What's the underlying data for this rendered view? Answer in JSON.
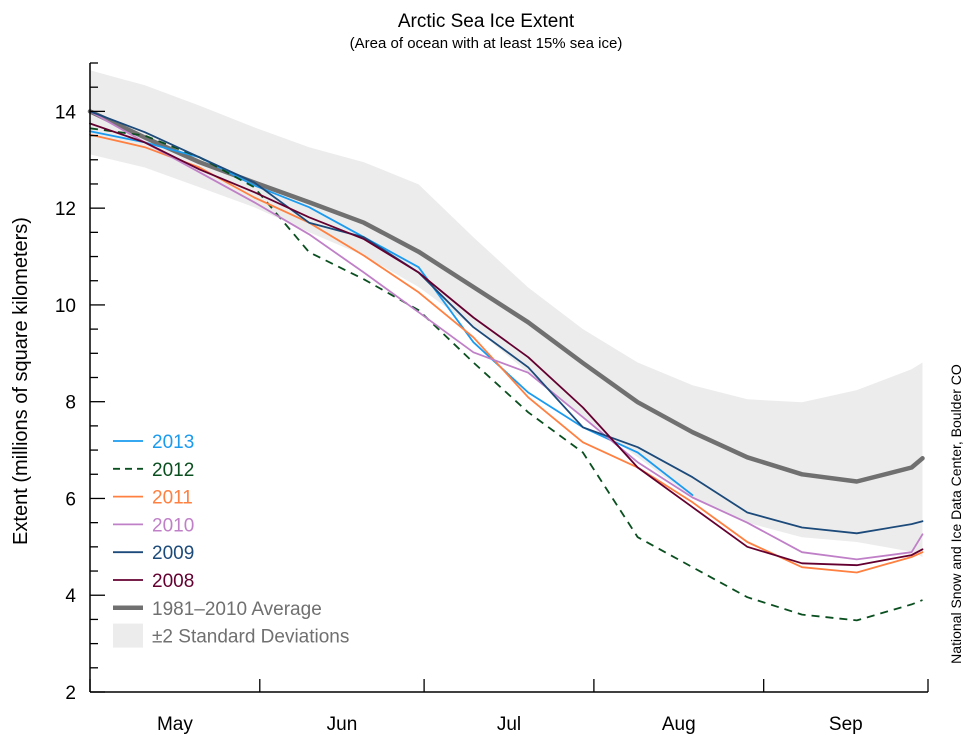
{
  "chart_data": {
    "type": "line",
    "title": "Arctic Sea Ice Extent",
    "subtitle": "(Area of ocean with at least 15% sea ice)",
    "ylabel": "Extent (millions of square kilometers)",
    "xlabel": "",
    "credit": "National Snow and Ice Data Center, Boulder CO",
    "ylim": [
      2,
      15
    ],
    "xlim": [
      "05-01",
      "10-01"
    ],
    "yticks": [
      2,
      4,
      6,
      8,
      10,
      12,
      14
    ],
    "xtick_labels": [
      "May",
      "Jun",
      "Jul",
      "Aug",
      "Sep"
    ],
    "grid": false,
    "legend_placement": "bottom-left",
    "x": [
      "05-01",
      "05-11",
      "05-21",
      "05-31",
      "06-10",
      "06-20",
      "06-30",
      "07-10",
      "07-20",
      "07-30",
      "08-09",
      "08-19",
      "08-29",
      "09-08",
      "09-18",
      "09-28",
      "09-30"
    ],
    "band": {
      "name": "±2 Standard Deviations",
      "color": "#ececec",
      "upper": [
        14.85,
        14.54,
        14.12,
        13.67,
        13.26,
        12.95,
        12.49,
        11.4,
        10.36,
        9.5,
        8.81,
        8.34,
        8.05,
        7.99,
        8.24,
        8.67,
        8.81
      ],
      "lower": [
        13.11,
        12.84,
        12.43,
        12.02,
        11.5,
        11.02,
        10.37,
        9.54,
        8.6,
        7.68,
        6.85,
        6.02,
        5.5,
        5.2,
        5.1,
        4.9,
        4.79
      ]
    },
    "series": [
      {
        "name": "2013",
        "color": "#1a9bf0",
        "dashed": false,
        "values": [
          13.59,
          13.36,
          13.05,
          12.47,
          12.02,
          11.4,
          10.78,
          9.23,
          8.19,
          7.47,
          6.95,
          6.07,
          null,
          null,
          null,
          null,
          null
        ]
      },
      {
        "name": "2012",
        "color": "#0a4f1f",
        "dashed": true,
        "values": [
          13.65,
          13.5,
          13.05,
          12.43,
          11.09,
          10.53,
          9.89,
          8.81,
          7.78,
          6.95,
          5.2,
          4.58,
          3.96,
          3.6,
          3.48,
          3.81,
          3.9
        ]
      },
      {
        "name": "2011",
        "color": "#ff8040",
        "dashed": false,
        "values": [
          13.52,
          13.26,
          12.84,
          12.22,
          11.7,
          11.02,
          10.26,
          9.33,
          8.09,
          7.16,
          6.64,
          5.92,
          5.1,
          4.58,
          4.47,
          4.79,
          4.89
        ]
      },
      {
        "name": "2010",
        "color": "#c080c8",
        "dashed": false,
        "values": [
          14.0,
          13.36,
          12.74,
          12.12,
          11.46,
          10.67,
          9.85,
          9.02,
          8.6,
          7.68,
          6.75,
          6.02,
          5.5,
          4.89,
          4.74,
          4.89,
          5.26
        ]
      },
      {
        "name": "2009",
        "color": "#1c4a7a",
        "dashed": false,
        "values": [
          14.0,
          13.57,
          13.05,
          12.53,
          11.7,
          11.4,
          10.67,
          9.54,
          8.71,
          7.47,
          7.06,
          6.44,
          5.71,
          5.4,
          5.28,
          5.47,
          5.53
        ]
      },
      {
        "name": "2008",
        "color": "#640030",
        "dashed": false,
        "values": [
          13.75,
          13.36,
          12.8,
          12.33,
          11.81,
          11.36,
          10.67,
          9.74,
          8.92,
          7.88,
          6.64,
          5.82,
          5.0,
          4.66,
          4.62,
          4.83,
          4.95
        ]
      },
      {
        "name": "1981–2010 Average",
        "color": "#707070",
        "dashed": false,
        "thick": true,
        "values": [
          14.0,
          13.46,
          12.95,
          12.53,
          12.12,
          11.7,
          11.1,
          10.37,
          9.64,
          8.8,
          7.99,
          7.37,
          6.85,
          6.5,
          6.35,
          6.64,
          6.83
        ]
      }
    ]
  }
}
